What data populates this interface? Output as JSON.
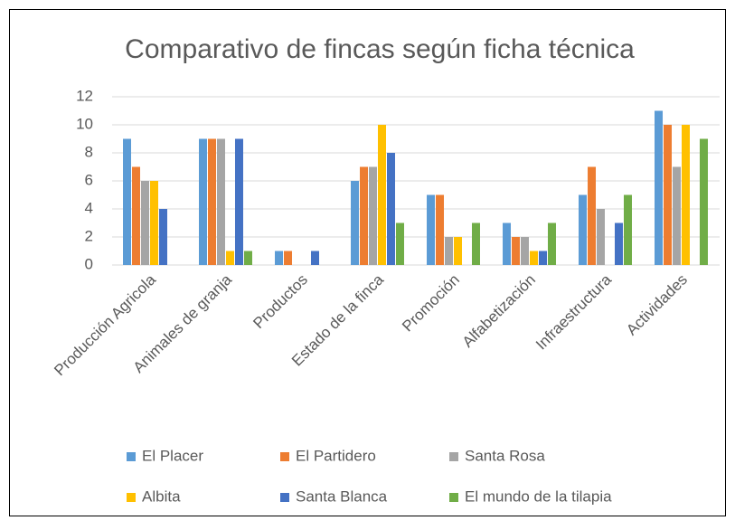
{
  "chart_data": {
    "type": "bar",
    "title": "Comparativo de fincas según ficha técnica",
    "categories": [
      "Producción Agricola",
      "Animales de granja",
      "Productos",
      "Estado de la finca",
      "Promoción",
      "Alfabetización",
      "Infraestructura",
      "Actividades"
    ],
    "series": [
      {
        "name": "El Placer",
        "color": "#5b9bd5",
        "values": [
          9,
          9,
          1,
          6,
          5,
          3,
          5,
          11
        ]
      },
      {
        "name": "El Partidero",
        "color": "#ed7d31",
        "values": [
          7,
          9,
          1,
          7,
          5,
          2,
          7,
          10
        ]
      },
      {
        "name": "Santa Rosa",
        "color": "#a5a5a5",
        "values": [
          6,
          9,
          0,
          7,
          2,
          2,
          4,
          7
        ]
      },
      {
        "name": "Albita",
        "color": "#ffc000",
        "values": [
          6,
          1,
          0,
          10,
          2,
          1,
          0,
          10
        ]
      },
      {
        "name": "Santa Blanca",
        "color": "#4472c4",
        "values": [
          4,
          9,
          1,
          8,
          0,
          1,
          3,
          0
        ]
      },
      {
        "name": "El mundo de la tilapia",
        "color": "#70ad47",
        "values": [
          0,
          1,
          0,
          3,
          3,
          3,
          5,
          9
        ]
      }
    ],
    "ylim": [
      0,
      12
    ],
    "yticks": [
      0,
      2,
      4,
      6,
      8,
      10,
      12
    ],
    "grid": true,
    "legend": "bottom"
  }
}
